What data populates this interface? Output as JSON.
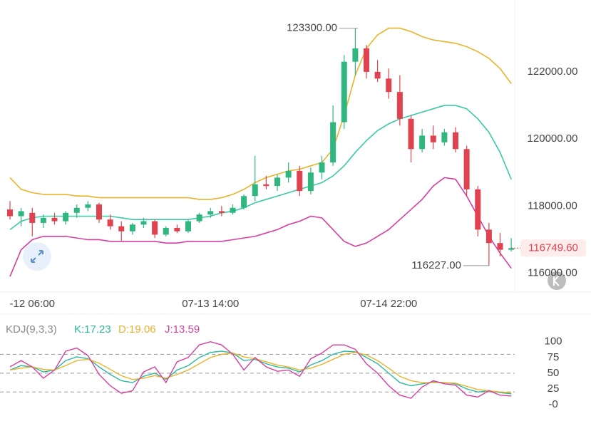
{
  "chart_data": [
    {
      "type": "candlestick",
      "categories": [
        null,
        null,
        "-12 06:00",
        null,
        null,
        null,
        null,
        null,
        null,
        null,
        null,
        null,
        null,
        null,
        null,
        null,
        null,
        null,
        "07-13 14:00",
        null,
        null,
        null,
        null,
        null,
        null,
        null,
        null,
        null,
        null,
        null,
        null,
        null,
        null,
        null,
        "07-14 22:00",
        null,
        null,
        null,
        null,
        null,
        null,
        null,
        null,
        null,
        null,
        null
      ],
      "open": [
        117900,
        117700,
        117800,
        117500,
        117650,
        117550,
        117800,
        117950,
        118050,
        117600,
        117400,
        117250,
        117450,
        117550,
        117150,
        117350,
        117250,
        117550,
        117750,
        117850,
        117800,
        117950,
        118300,
        118650,
        118600,
        118850,
        119050,
        118450,
        119000,
        119300,
        120500,
        122300,
        122700,
        122000,
        121800,
        121400,
        120600,
        119700,
        120100,
        119900,
        120200,
        119700,
        118500,
        117300,
        116900,
        116700
      ],
      "high": [
        118150,
        117950,
        117950,
        117750,
        117800,
        117850,
        118050,
        118150,
        118100,
        117750,
        117550,
        117500,
        117650,
        117600,
        117400,
        117450,
        117600,
        117800,
        117950,
        118000,
        118050,
        118350,
        119500,
        118900,
        118950,
        119300,
        119200,
        119150,
        119500,
        121000,
        122500,
        123300,
        122800,
        122350,
        122100,
        121900,
        120700,
        120300,
        120400,
        120300,
        120350,
        119800,
        118600,
        117500,
        117200,
        117050
      ],
      "low": [
        117600,
        117400,
        117100,
        117350,
        117450,
        117450,
        117650,
        117850,
        117500,
        117300,
        116950,
        117150,
        117350,
        117050,
        117100,
        117200,
        117200,
        117500,
        117650,
        117700,
        117750,
        117900,
        118150,
        118500,
        118450,
        118700,
        118300,
        118350,
        118800,
        119200,
        120300,
        121900,
        121800,
        121700,
        121200,
        120400,
        119300,
        119600,
        119700,
        119800,
        119600,
        118300,
        117100,
        116227,
        116500,
        116650
      ],
      "close": [
        117700,
        117850,
        117500,
        117650,
        117550,
        117800,
        117950,
        118050,
        117600,
        117400,
        117250,
        117450,
        117550,
        117150,
        117350,
        117250,
        117550,
        117750,
        117850,
        117800,
        117950,
        118300,
        118650,
        118600,
        118850,
        119050,
        118450,
        119000,
        119300,
        120500,
        122300,
        122700,
        122000,
        121800,
        121400,
        120600,
        119700,
        120100,
        119900,
        120200,
        119700,
        118500,
        117300,
        116900,
        116700,
        116749.6
      ],
      "up_color": "#2fb77f",
      "down_color": "#e0424f",
      "series": [
        {
          "color": "#e9b32b",
          "values": [
            118850,
            118500,
            118400,
            118350,
            118350,
            118350,
            118300,
            118300,
            118250,
            118250,
            118250,
            118250,
            118250,
            118250,
            118250,
            118250,
            118250,
            118200,
            118200,
            118250,
            118350,
            118500,
            118700,
            118850,
            118950,
            119050,
            119100,
            119200,
            119300,
            119700,
            120700,
            121900,
            122700,
            123100,
            123300,
            123300,
            123200,
            123050,
            122950,
            122900,
            122850,
            122750,
            122600,
            122400,
            122100,
            121650
          ]
        },
        {
          "color": "#3cc9a7",
          "values": [
            117300,
            117550,
            117650,
            117700,
            117700,
            117700,
            117700,
            117700,
            117700,
            117700,
            117650,
            117600,
            117600,
            117600,
            117600,
            117600,
            117600,
            117650,
            117700,
            117800,
            117850,
            117950,
            118100,
            118200,
            118300,
            118400,
            118500,
            118600,
            118700,
            118900,
            119200,
            119600,
            119950,
            120250,
            120450,
            120600,
            120700,
            120800,
            120900,
            121000,
            121000,
            120900,
            120600,
            120200,
            119600,
            118800
          ]
        },
        {
          "color": "#d63fa0",
          "values": [
            115900,
            116700,
            117000,
            117100,
            117100,
            117100,
            117050,
            117000,
            117000,
            116950,
            116950,
            116950,
            116950,
            116950,
            116900,
            116900,
            116950,
            116950,
            116950,
            116950,
            117000,
            117050,
            117100,
            117200,
            117300,
            117450,
            117550,
            117700,
            117650,
            117300,
            116950,
            116800,
            116900,
            117100,
            117300,
            117600,
            117900,
            118200,
            118600,
            118850,
            118800,
            118300,
            117700,
            117100,
            116600,
            116150
          ]
        }
      ],
      "ylim": [
        115440,
        124140
      ],
      "yticks": [
        {
          "value": 122000,
          "label": "122000.00"
        },
        {
          "value": 120000,
          "label": "120000.00"
        },
        {
          "value": 118000,
          "label": "118000.00"
        },
        {
          "value": 116000,
          "label": "116000.00"
        }
      ],
      "annotations": [
        {
          "value": 123300,
          "label": "123300.00"
        },
        {
          "value": 116227,
          "label": "116227.00"
        }
      ],
      "last_price": {
        "value": 116749.6,
        "label": "116749.60"
      }
    },
    {
      "type": "line",
      "legend": [
        "KDJ(9,3,3)",
        "K:17.23",
        "D:19.06",
        "J:13.59"
      ],
      "legend_colors": [
        "#8a8a8a",
        "#2bb9a0",
        "#e9b32b",
        "#d63fa0"
      ],
      "series": [
        {
          "color": "#2bb9a0",
          "values": [
            55,
            62,
            60,
            52,
            55,
            70,
            76,
            73,
            60,
            48,
            38,
            35,
            45,
            50,
            40,
            55,
            62,
            75,
            83,
            85,
            82,
            70,
            72,
            65,
            60,
            58,
            52,
            63,
            70,
            80,
            85,
            84,
            75,
            65,
            50,
            35,
            30,
            33,
            36,
            35,
            33,
            25,
            20,
            22,
            19,
            17.23
          ]
        },
        {
          "color": "#e9b32b",
          "values": [
            55,
            58,
            60,
            56,
            55,
            62,
            70,
            72,
            66,
            56,
            46,
            40,
            42,
            46,
            42,
            48,
            55,
            65,
            75,
            80,
            82,
            76,
            73,
            68,
            63,
            60,
            55,
            58,
            64,
            72,
            80,
            83,
            79,
            70,
            58,
            45,
            38,
            35,
            35,
            35,
            34,
            29,
            24,
            22,
            20,
            19.06
          ]
        },
        {
          "color": "#d63fa0",
          "values": [
            60,
            70,
            60,
            42,
            55,
            85,
            90,
            78,
            48,
            30,
            18,
            22,
            52,
            60,
            35,
            68,
            75,
            95,
            100,
            95,
            80,
            55,
            75,
            60,
            53,
            55,
            45,
            73,
            82,
            95,
            95,
            88,
            65,
            50,
            30,
            15,
            10,
            28,
            38,
            33,
            31,
            15,
            12,
            22,
            15,
            13.59
          ]
        }
      ],
      "ylim": [
        -25,
        136
      ],
      "yticks": [
        100,
        75,
        50,
        25,
        {
          "value": 0,
          "label": "-0"
        }
      ],
      "hlines": [
        80,
        50,
        20
      ]
    }
  ]
}
